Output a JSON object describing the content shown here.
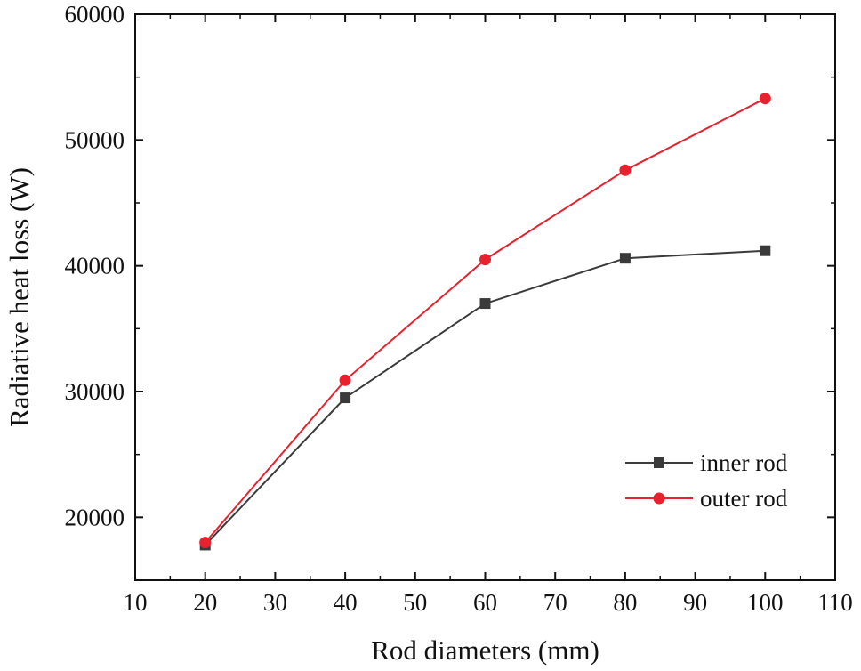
{
  "chart_data": {
    "type": "line",
    "title": "",
    "xlabel": "Rod diameters (mm)",
    "ylabel": "Radiative heat loss (W)",
    "xlim": [
      10,
      110
    ],
    "ylim": [
      15000,
      60000
    ],
    "xticks": [
      10,
      20,
      30,
      40,
      50,
      60,
      70,
      80,
      90,
      100,
      110
    ],
    "xtick_labels": [
      "10",
      "20",
      "30",
      "40",
      "50",
      "60",
      "70",
      "80",
      "90",
      "100",
      "110"
    ],
    "yticks": [
      20000,
      30000,
      40000,
      50000,
      60000
    ],
    "ytick_labels": [
      "20000",
      "30000",
      "40000",
      "50000",
      "60000"
    ],
    "grid": false,
    "legend_position": "bottom-right",
    "series": [
      {
        "name": "inner rod",
        "color": "#3a3a3a",
        "marker": "square",
        "x": [
          20,
          40,
          60,
          80,
          100
        ],
        "y": [
          17800,
          29500,
          37000,
          40600,
          41200
        ]
      },
      {
        "name": "outer rod",
        "color": "#e8212e",
        "marker": "circle",
        "x": [
          20,
          40,
          60,
          80,
          100
        ],
        "y": [
          18000,
          30900,
          40500,
          47600,
          53300
        ]
      }
    ]
  }
}
